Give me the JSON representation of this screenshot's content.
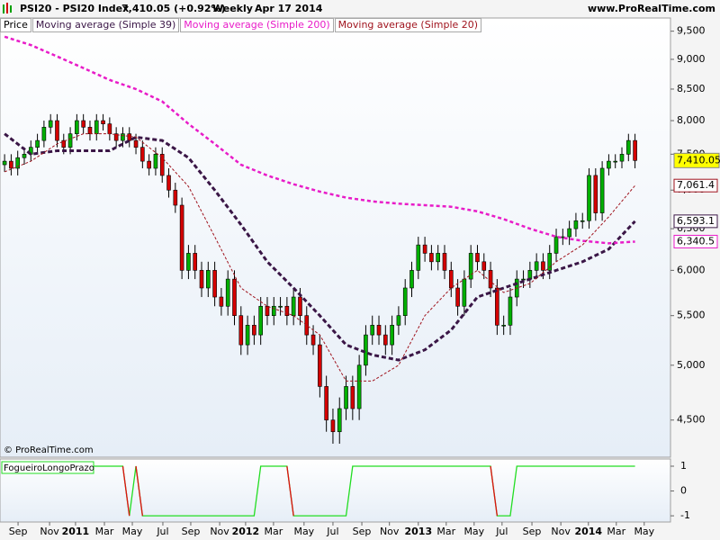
{
  "header": {
    "instrument": "PSI20 - PSI20 Index",
    "quote": "7,410.05 (+0.92%)",
    "period": "Weekly",
    "date": "Apr 17 2014",
    "site": "www.ProRealTime.com"
  },
  "copyright": "© ProRealTime.com",
  "chart_data": [
    {
      "type": "candlestick",
      "price_name": "Price",
      "log_scale": true,
      "up_color": "#00b000",
      "down_color": "#d40000",
      "last_label": "7,410.05",
      "last_color": "#ffff00",
      "xlim": [
        -0.7,
        101.4
      ],
      "ylim": [
        4190,
        9660
      ],
      "yticks": [
        {
          "value": 9500,
          "label": "9,500"
        },
        {
          "value": 9000,
          "label": "9,000"
        },
        {
          "value": 8500,
          "label": "8,500"
        },
        {
          "value": 8000,
          "label": "8,000"
        },
        {
          "value": 7500,
          "label": "7,500"
        },
        {
          "value": 7000,
          "label": "7,000"
        },
        {
          "value": 6500,
          "label": "6,500"
        },
        {
          "value": 6000,
          "label": "6,000"
        },
        {
          "value": 5500,
          "label": "5,500"
        },
        {
          "value": 5000,
          "label": "5,000"
        },
        {
          "value": 4500,
          "label": "4,500"
        }
      ],
      "open": [
        7350,
        7400,
        7300,
        7450,
        7500,
        7600,
        7700,
        7900,
        8000,
        7700,
        7600,
        7800,
        8000,
        7900,
        7800,
        8000,
        7950,
        7800,
        7700,
        7800,
        7700,
        7600,
        7400,
        7300,
        7500,
        7200,
        7000,
        6800,
        6000,
        6200,
        6000,
        5800,
        6000,
        5700,
        5600,
        5900,
        5500,
        5200,
        5400,
        5300,
        5600,
        5500,
        5600,
        5600,
        5500,
        5700,
        5500,
        5300,
        5200,
        4800,
        4500,
        4400,
        4600,
        4800,
        4600,
        5000,
        5300,
        5400,
        5300,
        5200,
        5400,
        5500,
        5800,
        6000,
        6300,
        6200,
        6100,
        6200,
        6000,
        5800,
        5600,
        5900,
        6200,
        6100,
        6000,
        5800,
        5400,
        5400,
        5700,
        5900,
        5900,
        6000,
        6100,
        6000,
        6200,
        6400,
        6400,
        6500,
        6600,
        6600,
        7200,
        6700,
        7300,
        7400,
        7400,
        7500,
        7700
      ],
      "high": [
        7500,
        7500,
        7550,
        7600,
        7700,
        7800,
        8000,
        8100,
        8100,
        7800,
        7900,
        8100,
        8100,
        8000,
        8100,
        8100,
        8050,
        7900,
        7900,
        7900,
        7800,
        7700,
        7500,
        7600,
        7600,
        7300,
        7100,
        6900,
        6300,
        6300,
        6100,
        6100,
        6100,
        5800,
        6000,
        6000,
        5600,
        5500,
        5500,
        5700,
        5700,
        5700,
        5700,
        5700,
        5800,
        5800,
        5600,
        5400,
        5300,
        4900,
        4600,
        4700,
        4900,
        4900,
        5100,
        5400,
        5500,
        5500,
        5400,
        5500,
        5600,
        5900,
        6100,
        6400,
        6400,
        6300,
        6300,
        6300,
        6100,
        5900,
        6000,
        6300,
        6300,
        6200,
        6100,
        5900,
        5500,
        5800,
        6000,
        6000,
        6100,
        6200,
        6200,
        6300,
        6500,
        6500,
        6600,
        6700,
        6700,
        7300,
        7300,
        7400,
        7500,
        7500,
        7600,
        7800,
        7800
      ],
      "low": [
        7250,
        7200,
        7200,
        7350,
        7400,
        7500,
        7600,
        7800,
        7600,
        7500,
        7500,
        7700,
        7800,
        7700,
        7700,
        7850,
        7700,
        7600,
        7600,
        7600,
        7500,
        7300,
        7200,
        7200,
        7100,
        6900,
        6700,
        5900,
        5900,
        5900,
        5700,
        5700,
        5600,
        5500,
        5500,
        5400,
        5100,
        5100,
        5200,
        5200,
        5400,
        5400,
        5500,
        5400,
        5400,
        5400,
        5200,
        5100,
        4700,
        4400,
        4300,
        4300,
        4500,
        4500,
        4500,
        4900,
        5200,
        5200,
        5100,
        5100,
        5300,
        5400,
        5700,
        5900,
        6100,
        6000,
        6000,
        5900,
        5700,
        5500,
        5500,
        5800,
        6000,
        5900,
        5700,
        5300,
        5300,
        5300,
        5600,
        5800,
        5800,
        5900,
        5900,
        5900,
        6100,
        6300,
        6300,
        6400,
        6500,
        6500,
        6600,
        6600,
        7200,
        7300,
        7300,
        7400,
        7300
      ],
      "close": [
        7400,
        7300,
        7450,
        7500,
        7600,
        7700,
        7900,
        8000,
        7700,
        7600,
        7800,
        8000,
        7900,
        7800,
        8000,
        7950,
        7800,
        7700,
        7800,
        7700,
        7600,
        7400,
        7300,
        7500,
        7200,
        7000,
        6800,
        6000,
        6200,
        6000,
        5800,
        6000,
        5700,
        5600,
        5900,
        5500,
        5200,
        5400,
        5300,
        5600,
        5500,
        5600,
        5600,
        5500,
        5700,
        5500,
        5300,
        5200,
        4800,
        4500,
        4400,
        4600,
        4800,
        4600,
        5000,
        5300,
        5400,
        5300,
        5200,
        5400,
        5500,
        5800,
        6000,
        6300,
        6200,
        6100,
        6200,
        6000,
        5800,
        5600,
        5900,
        6200,
        6100,
        6000,
        5800,
        5400,
        5400,
        5700,
        5900,
        5900,
        6000,
        6100,
        6000,
        6200,
        6400,
        6400,
        6500,
        6600,
        6600,
        7200,
        6700,
        7300,
        7400,
        7400,
        7500,
        7700,
        7410
      ],
      "series": [
        {
          "name": "Moving average (Simple 39)",
          "color": "#3a1646",
          "last_label": "6,593.1",
          "x": [
            0,
            4,
            8,
            12,
            16,
            20,
            24,
            28,
            32,
            36,
            40,
            44,
            48,
            52,
            56,
            60,
            64,
            68,
            72,
            76,
            80,
            84,
            88,
            92,
            96
          ],
          "values": [
            7800,
            7500,
            7550,
            7550,
            7550,
            7750,
            7700,
            7450,
            7000,
            6550,
            6100,
            5800,
            5500,
            5200,
            5100,
            5050,
            5150,
            5350,
            5700,
            5800,
            5900,
            6000,
            6100,
            6250,
            6593.1
          ]
        },
        {
          "name": "Moving average (Simple 200)",
          "color": "#e81cc8",
          "last_label": "6,340.5",
          "x": [
            0,
            4,
            8,
            12,
            16,
            20,
            24,
            28,
            32,
            36,
            40,
            44,
            48,
            52,
            56,
            60,
            64,
            68,
            72,
            76,
            80,
            84,
            88,
            92,
            96
          ],
          "values": [
            9400,
            9250,
            9050,
            8850,
            8650,
            8500,
            8300,
            7950,
            7650,
            7350,
            7200,
            7080,
            6980,
            6900,
            6850,
            6820,
            6800,
            6780,
            6720,
            6620,
            6500,
            6400,
            6350,
            6320,
            6340.5
          ]
        },
        {
          "name": "Moving average (Simple 20)",
          "color": "#a0141e",
          "last_label": "7,061.4",
          "x": [
            0,
            4,
            8,
            12,
            16,
            20,
            24,
            28,
            32,
            36,
            40,
            44,
            48,
            52,
            56,
            60,
            64,
            68,
            72,
            76,
            80,
            84,
            88,
            92,
            96
          ],
          "values": [
            7250,
            7400,
            7650,
            7800,
            7800,
            7750,
            7450,
            7050,
            6400,
            5800,
            5600,
            5500,
            5300,
            4850,
            4850,
            5000,
            5500,
            5800,
            6000,
            5750,
            5850,
            6100,
            6300,
            6650,
            7061.4
          ]
        }
      ]
    },
    {
      "type": "step",
      "name": "FogueiroLongoPrazo",
      "up_color": "#22dd22",
      "down_color": "#e01010",
      "xlim": [
        -0.7,
        101.4
      ],
      "ylim": [
        -1.25,
        1.29
      ],
      "yticks": [
        1,
        0,
        -1
      ],
      "values": [
        1,
        1,
        1,
        1,
        1,
        1,
        1,
        1,
        1,
        1,
        1,
        1,
        1,
        1,
        1,
        1,
        1,
        1,
        1,
        -1,
        1,
        -1,
        -1,
        -1,
        -1,
        -1,
        -1,
        -1,
        -1,
        -1,
        -1,
        -1,
        -1,
        -1,
        -1,
        -1,
        -1,
        -1,
        -1,
        1,
        1,
        1,
        1,
        1,
        -1,
        -1,
        -1,
        -1,
        -1,
        -1,
        -1,
        -1,
        -1,
        1,
        1,
        1,
        1,
        1,
        1,
        1,
        1,
        1,
        1,
        1,
        1,
        1,
        1,
        1,
        1,
        1,
        1,
        1,
        1,
        1,
        1,
        -1,
        -1,
        -1,
        1,
        1,
        1,
        1,
        1,
        1,
        1,
        1,
        1,
        1,
        1,
        1,
        1,
        1,
        1,
        1,
        1,
        1,
        1
      ],
      "xticks": [
        {
          "value": 2.05,
          "label": "Sep"
        },
        {
          "value": 6.85,
          "label": "Nov"
        },
        {
          "value": 10.8,
          "label": "2011"
        },
        {
          "value": 15.2,
          "label": "Mar"
        },
        {
          "value": 19.45,
          "label": "May"
        },
        {
          "value": 24.1,
          "label": "Jul"
        },
        {
          "value": 28.35,
          "label": "Sep"
        },
        {
          "value": 32.75,
          "label": "Nov"
        },
        {
          "value": 36.7,
          "label": "2012"
        },
        {
          "value": 40.95,
          "label": "Mar"
        },
        {
          "value": 45.6,
          "label": "May"
        },
        {
          "value": 50,
          "label": "Jul"
        },
        {
          "value": 54.4,
          "label": "Sep"
        },
        {
          "value": 58.6,
          "label": "Nov"
        },
        {
          "value": 63,
          "label": "2013"
        },
        {
          "value": 67.25,
          "label": "Mar"
        },
        {
          "value": 71.5,
          "label": "May"
        },
        {
          "value": 75.75,
          "label": "Jul"
        },
        {
          "value": 80.3,
          "label": "Sep"
        },
        {
          "value": 84.7,
          "label": "Nov"
        },
        {
          "value": 88.9,
          "label": "2014"
        },
        {
          "value": 93.15,
          "label": "Mar"
        },
        {
          "value": 97.4,
          "label": "May"
        }
      ]
    }
  ]
}
